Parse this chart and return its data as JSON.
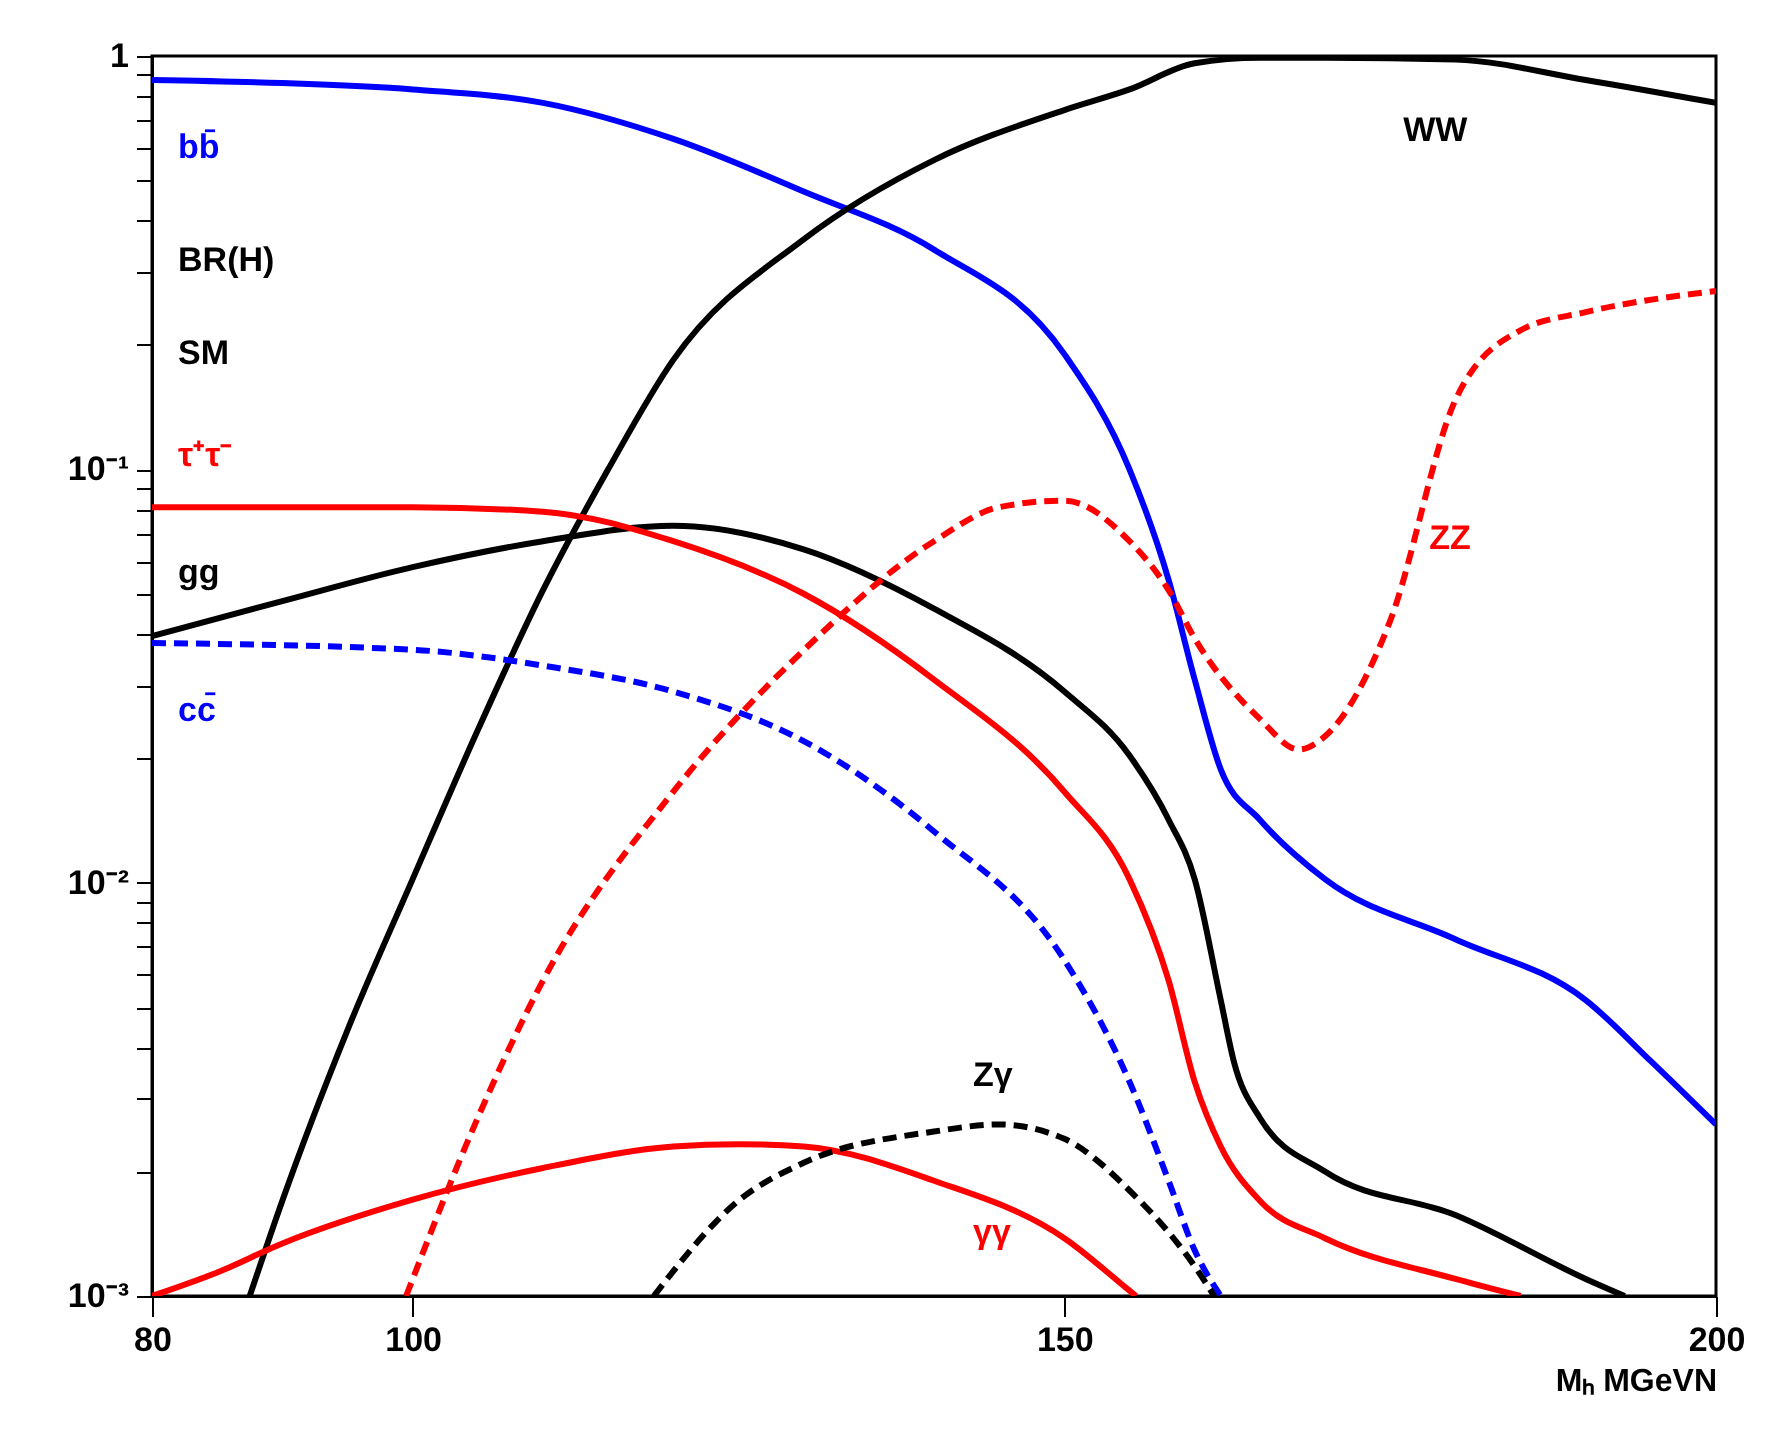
{
  "chart_data": {
    "type": "line",
    "xlabel": "Mₕ MGeVN",
    "xlim": [
      80,
      200
    ],
    "xticks": [
      80,
      100,
      150,
      200
    ],
    "ylim": [
      0.001,
      1
    ],
    "log": "y",
    "yticks": [
      {
        "value": 0.001,
        "label": "10⁻³"
      },
      {
        "value": 0.002,
        "label": null
      },
      {
        "value": 0.003,
        "label": null
      },
      {
        "value": 0.004,
        "label": null
      },
      {
        "value": 0.005,
        "label": null
      },
      {
        "value": 0.006,
        "label": null
      },
      {
        "value": 0.007,
        "label": null
      },
      {
        "value": 0.008,
        "label": null
      },
      {
        "value": 0.009,
        "label": null
      },
      {
        "value": 0.01,
        "label": "10⁻²"
      },
      {
        "value": 0.02,
        "label": null
      },
      {
        "value": 0.03,
        "label": null
      },
      {
        "value": 0.04,
        "label": null
      },
      {
        "value": 0.05,
        "label": null
      },
      {
        "value": 0.06,
        "label": null
      },
      {
        "value": 0.07,
        "label": null
      },
      {
        "value": 0.08,
        "label": null
      },
      {
        "value": 0.09,
        "label": null
      },
      {
        "value": 0.1,
        "label": "10⁻¹"
      },
      {
        "value": 0.2,
        "label": null
      },
      {
        "value": 0.3,
        "label": null
      },
      {
        "value": 0.4,
        "label": null
      },
      {
        "value": 0.5,
        "label": null
      },
      {
        "value": 0.6,
        "label": null
      },
      {
        "value": 0.7,
        "label": null
      },
      {
        "value": 0.8,
        "label": null
      },
      {
        "value": 0.9,
        "label": null
      },
      1
    ],
    "marker": "none",
    "annotations": [
      "BR(H)",
      "SM"
    ],
    "series": [
      {
        "name": "bb̄",
        "color": "#0000ff",
        "x": [
          80,
          90,
          100,
          110,
          120,
          130,
          140,
          150,
          155,
          158,
          160,
          162,
          165,
          170,
          180,
          190,
          195,
          200
        ],
        "values": [
          0.875,
          0.86,
          0.83,
          0.77,
          0.63,
          0.47,
          0.34,
          0.19,
          0.1,
          0.054,
          0.031,
          0.0188,
          0.0142,
          0.0102,
          0.0073,
          0.0052,
          0.0037,
          0.0026
        ]
      },
      {
        "name": "WW",
        "color": "#000000",
        "x": [
          87.5,
          90,
          95,
          100,
          105,
          110,
          115,
          120,
          130,
          140,
          150,
          155,
          160,
          165,
          170,
          180,
          190,
          200
        ],
        "values": [
          0.001,
          0.0017,
          0.0044,
          0.0102,
          0.0234,
          0.051,
          0.1,
          0.184,
          0.36,
          0.56,
          0.74,
          0.83,
          0.96,
          0.99,
          0.99,
          0.98,
          0.875,
          0.77
        ]
      },
      {
        "name": "gg",
        "color": "#000000",
        "x": [
          80,
          90,
          100,
          110,
          120,
          130,
          140,
          150,
          155,
          158,
          160,
          162,
          163,
          165,
          170,
          180,
          190,
          193
        ],
        "values": [
          0.0395,
          0.048,
          0.058,
          0.067,
          0.073,
          0.064,
          0.046,
          0.029,
          0.0203,
          0.0142,
          0.0102,
          0.0052,
          0.0037,
          0.0027,
          0.002,
          0.00157,
          0.0011,
          0.001
        ]
      },
      {
        "name": "τ⁺τ⁻",
        "color": "#ff0000",
        "x": [
          80,
          100,
          110,
          120,
          130,
          140,
          150,
          155,
          158,
          160,
          162,
          165,
          170,
          180,
          185
        ],
        "values": [
          0.081,
          0.081,
          0.079,
          0.067,
          0.05,
          0.031,
          0.0166,
          0.0102,
          0.0058,
          0.0033,
          0.0023,
          0.0017,
          0.00138,
          0.0011,
          0.001
        ]
      },
      {
        "name": "cc̄",
        "color": "#0000ff",
        "line_style": "dashed",
        "x": [
          80,
          100,
          110,
          120,
          130,
          140,
          150,
          155,
          158,
          160,
          162
        ],
        "values": [
          0.038,
          0.0366,
          0.0335,
          0.029,
          0.022,
          0.0133,
          0.0065,
          0.0033,
          0.0019,
          0.00129,
          0.001
        ]
      },
      {
        "name": "ZZ",
        "color": "#ff0000",
        "line_style": "dashed",
        "x": [
          99.5,
          105,
          110,
          120,
          130,
          140,
          145,
          150,
          155,
          158,
          160,
          165,
          168,
          170,
          175,
          180,
          185,
          190,
          200
        ],
        "values": [
          0.001,
          0.0027,
          0.0058,
          0.0166,
          0.0365,
          0.067,
          0.081,
          0.084,
          0.067,
          0.051,
          0.039,
          0.0249,
          0.021,
          0.0226,
          0.043,
          0.147,
          0.217,
          0.24,
          0.27
        ]
      },
      {
        "name": "γγ",
        "color": "#ff0000",
        "x": [
          80,
          85,
          90,
          100,
          110,
          120,
          125,
          130,
          140,
          150,
          155,
          155.5
        ],
        "values": [
          0.001,
          0.00114,
          0.00134,
          0.00171,
          0.00204,
          0.0023,
          0.00233,
          0.0023,
          0.0019,
          0.00138,
          0.00103,
          0.001
        ]
      },
      {
        "name": "Zγ",
        "color": "#000000",
        "line_style": "dashed",
        "x": [
          118.5,
          125,
          130,
          140,
          145,
          150,
          155,
          160,
          161.5
        ],
        "values": [
          0.001,
          0.0017,
          0.0021,
          0.0025,
          0.0026,
          0.0024,
          0.0018,
          0.00118,
          0.001
        ]
      }
    ]
  }
}
